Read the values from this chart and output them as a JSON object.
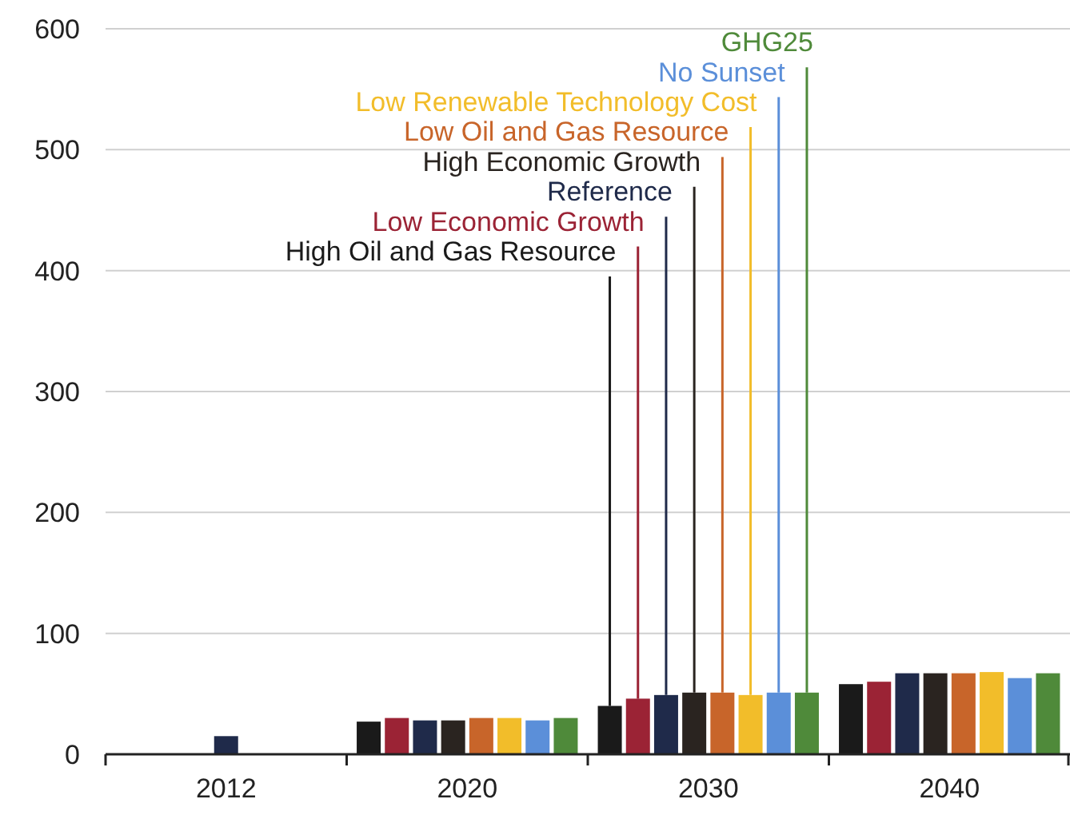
{
  "chart_data": {
    "type": "bar",
    "categories": [
      "2012",
      "2020",
      "2030",
      "2040"
    ],
    "series": [
      {
        "color": "#1f2a4a",
        "values": [
          15,
          null,
          null,
          null
        ]
      },
      {
        "name": "High Oil and Gas Resource",
        "color": "#1a1a1a",
        "values": [
          null,
          27,
          40,
          58
        ]
      },
      {
        "name": "Low Economic Growth",
        "color": "#9b2335",
        "values": [
          null,
          30,
          46,
          60
        ]
      },
      {
        "name": "Reference",
        "color": "#1f2a4a",
        "values": [
          null,
          28,
          49,
          67
        ]
      },
      {
        "name": "High Economic Growth",
        "color": "#2a2420",
        "values": [
          null,
          28,
          51,
          67
        ]
      },
      {
        "name": "Low Oil and Gas Resource",
        "color": "#c8652a",
        "values": [
          null,
          30,
          51,
          67
        ]
      },
      {
        "name": "Low Renewable Technology Cost",
        "color": "#f2bd2a",
        "values": [
          null,
          30,
          49,
          68
        ]
      },
      {
        "name": "No Sunset",
        "color": "#5b8fd9",
        "values": [
          null,
          28,
          51,
          63
        ]
      },
      {
        "name": "GHG25",
        "color": "#4f8a3a",
        "values": [
          null,
          30,
          51,
          67
        ]
      }
    ],
    "ylim": [
      0,
      600
    ],
    "yticks": [
      0,
      100,
      200,
      300,
      400,
      500,
      600
    ],
    "grid": "y"
  }
}
